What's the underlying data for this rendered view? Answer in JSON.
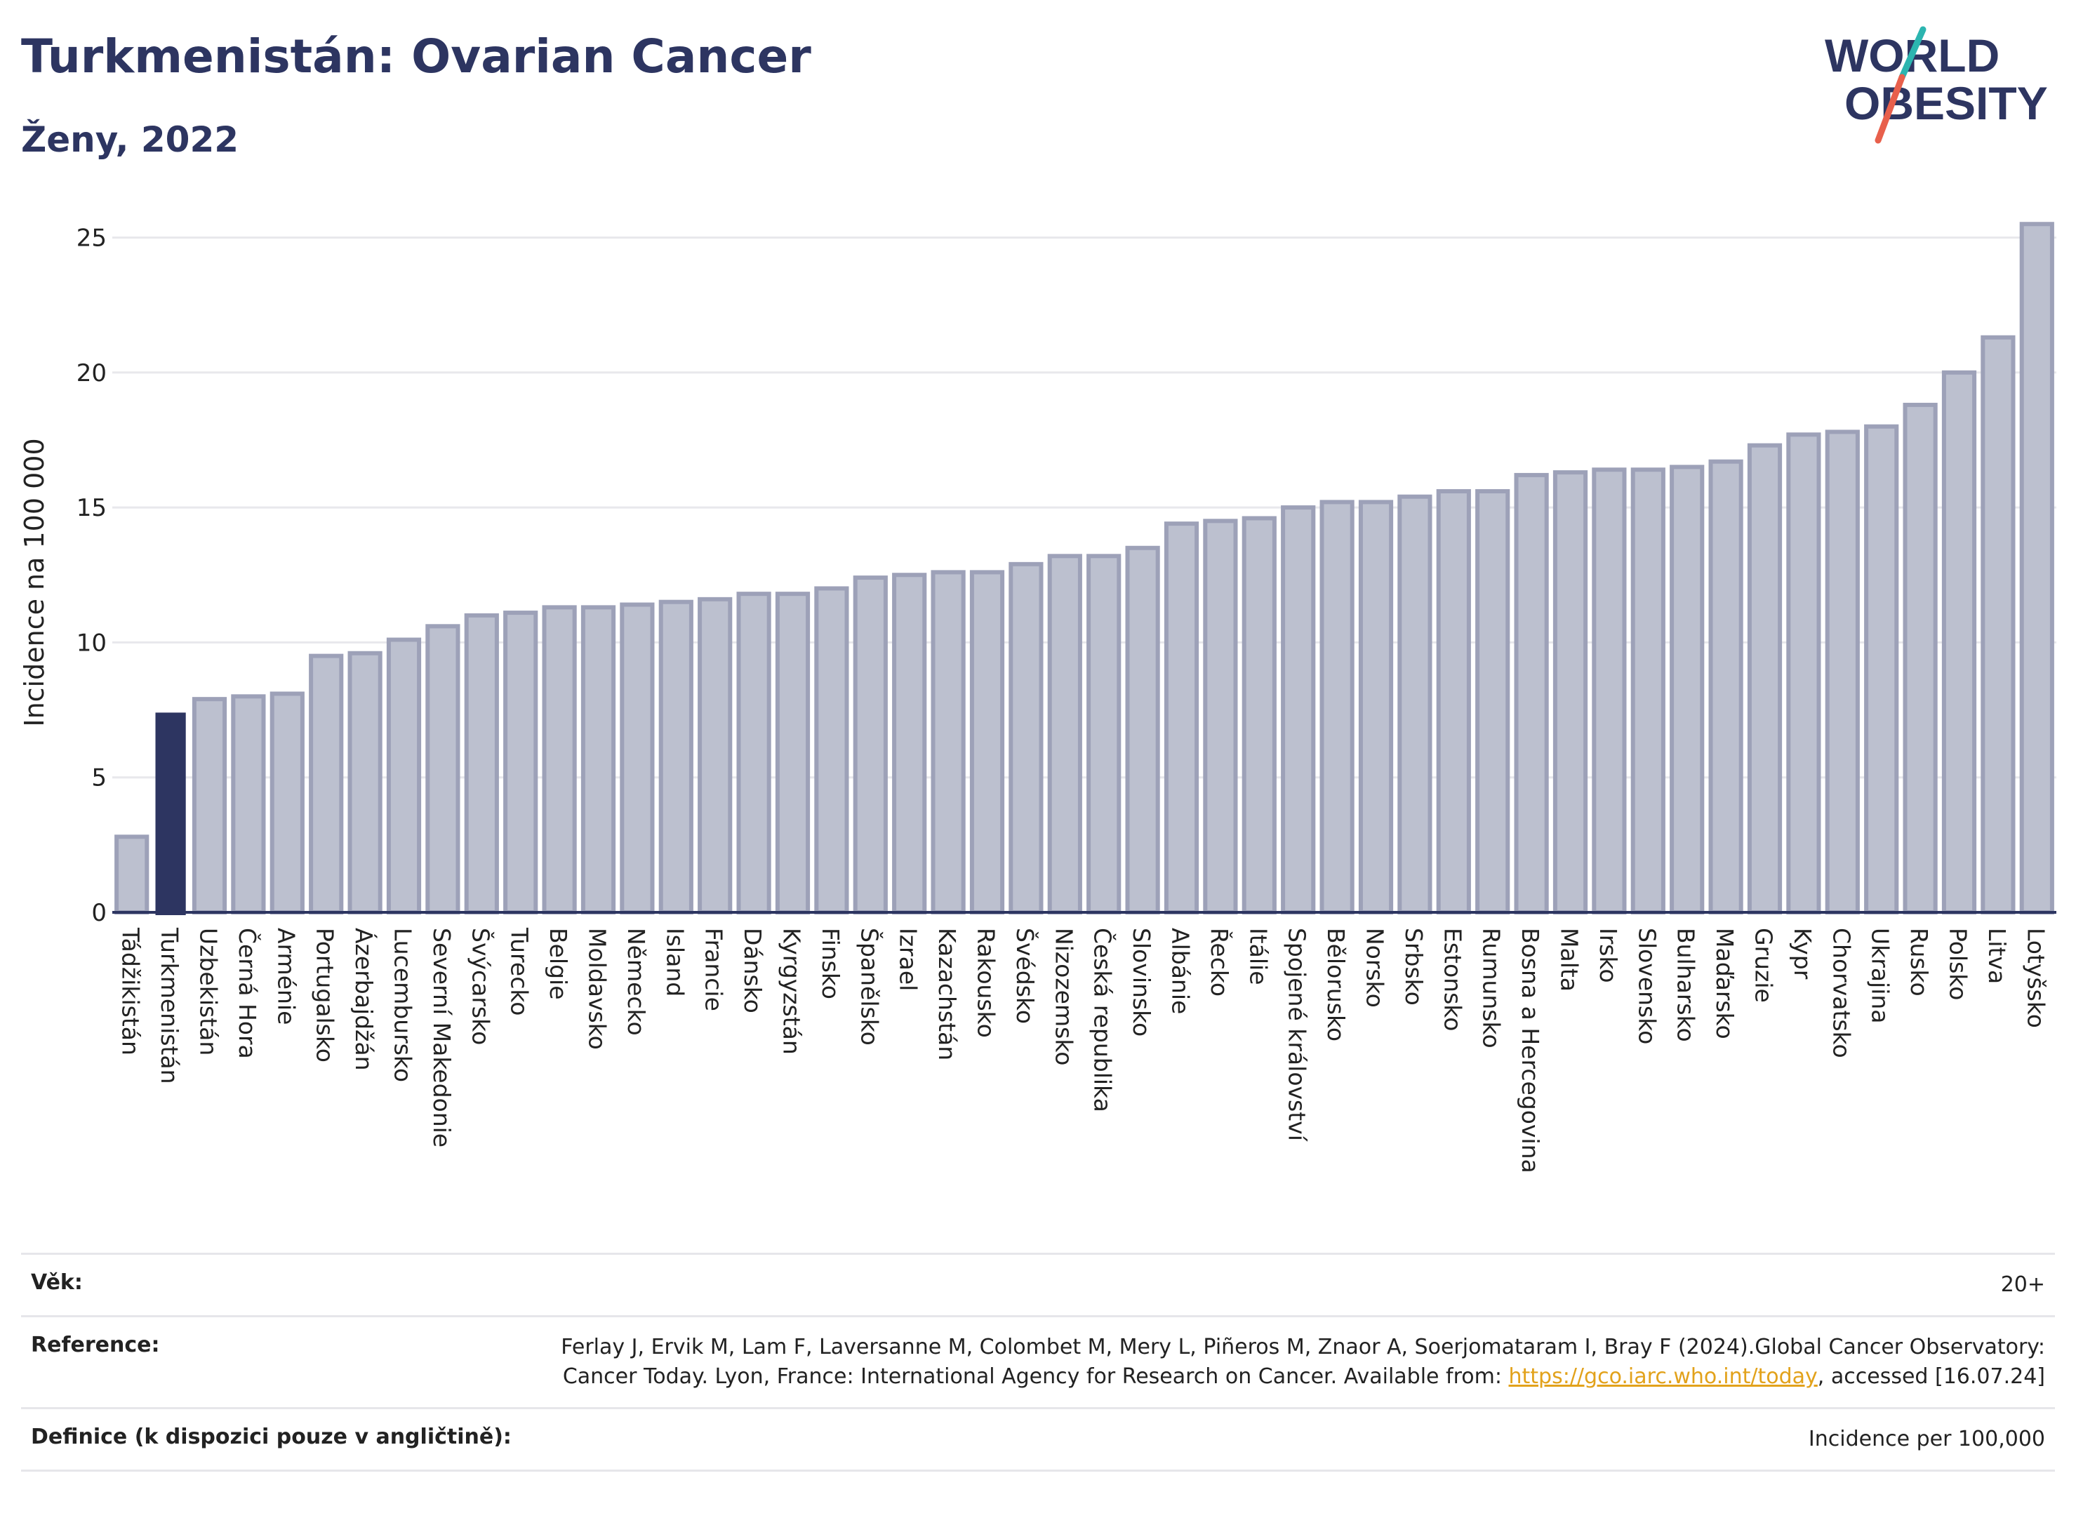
{
  "header": {
    "title": "Turkmenistán: Ovarian Cancer",
    "subtitle": "Ženy, 2022",
    "logo_line1": "WORLD",
    "logo_line2": "OBESITY"
  },
  "colors": {
    "title": "#2d3561",
    "highlight_bar": "#2d3561",
    "bar_fill": "#bcc0cf",
    "bar_stroke": "#9da1b8",
    "grid": "#e8e8ec",
    "logo_teal": "#2cb5b0",
    "logo_red": "#e8604c",
    "link": "#e2a21b"
  },
  "chart_data": {
    "type": "bar",
    "ylabel": "Incidence na 100 000",
    "ylim": [
      0,
      26
    ],
    "yticks": [
      0,
      5,
      10,
      15,
      20,
      25
    ],
    "grid": true,
    "highlight": "Turkmenistán",
    "categories": [
      "Tádžikistán",
      "Turkmenistán",
      "Uzbekistán",
      "Černá Hora",
      "Arménie",
      "Portugalsko",
      "Ázerbajdžán",
      "Lucembursko",
      "Severní Makedonie",
      "Švýcarsko",
      "Turecko",
      "Belgie",
      "Moldavsko",
      "Německo",
      "Island",
      "Francie",
      "Dánsko",
      "Kyrgyzstán",
      "Finsko",
      "Španělsko",
      "Izrael",
      "Kazachstán",
      "Rakousko",
      "Švédsko",
      "Nizozemsko",
      "Česká republika",
      "Slovinsko",
      "Albánie",
      "Řecko",
      "Itálie",
      "Spojené království",
      "Bělorusko",
      "Norsko",
      "Srbsko",
      "Estonsko",
      "Rumunsko",
      "Bosna a Hercegovina",
      "Malta",
      "Irsko",
      "Slovensko",
      "Bulharsko",
      "Maďarsko",
      "Gruzie",
      "Kypr",
      "Chorvatsko",
      "Ukrajina",
      "Rusko",
      "Polsko",
      "Litva",
      "Lotyšsko"
    ],
    "values": [
      2.8,
      7.4,
      7.9,
      8.0,
      8.1,
      9.5,
      9.6,
      10.1,
      10.6,
      11.0,
      11.1,
      11.3,
      11.3,
      11.4,
      11.5,
      11.6,
      11.8,
      11.8,
      12.0,
      12.4,
      12.5,
      12.6,
      12.6,
      12.9,
      13.2,
      13.2,
      13.5,
      14.4,
      14.5,
      14.6,
      15.0,
      15.2,
      15.2,
      15.4,
      15.6,
      15.6,
      16.2,
      16.3,
      16.4,
      16.4,
      16.5,
      16.7,
      17.3,
      17.7,
      17.8,
      18.0,
      18.8,
      20.0,
      21.3,
      25.5
    ]
  },
  "meta": {
    "age_label": "Věk:",
    "age_value": "20+",
    "reference_label": "Reference:",
    "reference_text": "Ferlay J, Ervik M, Lam F, Laversanne M, Colombet M, Mery L, Piñeros M, Znaor A, Soerjomataram I, Bray F (2024).Global Cancer Observatory: Cancer Today. Lyon, France: International Agency for Research on Cancer. Available from: ",
    "reference_link": "https://gco.iarc.who.int/today",
    "reference_suffix": ", accessed [16.07.24]",
    "definition_label": "Definice (k dispozici pouze v angličtině):",
    "definition_value": "Incidence per 100,000"
  }
}
